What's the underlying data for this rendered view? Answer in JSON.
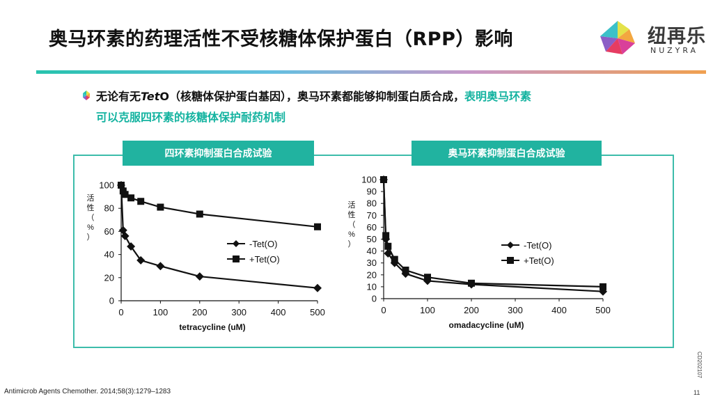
{
  "title": "奥马环素的药理活性不受核糖体保护蛋白（RPP）影响",
  "logo": {
    "cn": "纽再乐",
    "en": "NUZYRA"
  },
  "bullet": {
    "p1": "无论有无",
    "p2_italic": "Tet",
    "p3": "O（核糖体保护蛋白基因），奥马环素都能够抑制蛋白质合成，",
    "highlight_line1": "表明奥马环素",
    "highlight_line2": "可以克服四环素的核糖体保护耐药机制"
  },
  "tabs": {
    "left": "四环素抑制蛋白合成试验",
    "right": "奥马环素抑制蛋白合成试验"
  },
  "footer": {
    "reference": "Antimicrob Agents Chemother. 2014;58(3):1279–1283",
    "page": "11",
    "code": "CD202107"
  },
  "colors": {
    "accent": "#21b3a0",
    "frame": "#3cbcaa"
  },
  "chart_data": [
    {
      "type": "line",
      "xlabel": "tetracycline (uM)",
      "ylabel": "活性（%）",
      "xlim": [
        0,
        500
      ],
      "ylim": [
        0,
        100
      ],
      "xticks": [
        0,
        100,
        200,
        300,
        400,
        500
      ],
      "yticks": [
        0,
        20,
        40,
        60,
        80,
        100
      ],
      "legend_position": "center-right",
      "series": [
        {
          "name": "-Tet(O)",
          "marker": "diamond",
          "x": [
            0,
            5,
            10,
            25,
            50,
            100,
            200,
            500
          ],
          "y": [
            100,
            61,
            56,
            47,
            35,
            30,
            21,
            11
          ]
        },
        {
          "name": "+Tet(O)",
          "marker": "square",
          "x": [
            0,
            5,
            10,
            25,
            50,
            100,
            200,
            500
          ],
          "y": [
            100,
            95,
            92,
            89,
            86,
            81,
            75,
            64
          ]
        }
      ]
    },
    {
      "type": "line",
      "xlabel": "omadacycline (uM)",
      "ylabel": "活性（%）",
      "xlim": [
        0,
        500
      ],
      "ylim": [
        0,
        100
      ],
      "xticks": [
        0,
        100,
        200,
        300,
        400,
        500
      ],
      "yticks": [
        0,
        10,
        20,
        30,
        40,
        50,
        60,
        70,
        80,
        90,
        100
      ],
      "legend_position": "center-right",
      "series": [
        {
          "name": "-Tet(O)",
          "marker": "diamond",
          "x": [
            0,
            5,
            10,
            25,
            50,
            100,
            200,
            500
          ],
          "y": [
            100,
            50,
            38,
            30,
            21,
            15,
            12,
            6
          ]
        },
        {
          "name": "+Tet(O)",
          "marker": "square",
          "x": [
            0,
            5,
            10,
            25,
            50,
            100,
            200,
            500
          ],
          "y": [
            100,
            53,
            44,
            33,
            24,
            18,
            13,
            10
          ]
        }
      ]
    }
  ]
}
